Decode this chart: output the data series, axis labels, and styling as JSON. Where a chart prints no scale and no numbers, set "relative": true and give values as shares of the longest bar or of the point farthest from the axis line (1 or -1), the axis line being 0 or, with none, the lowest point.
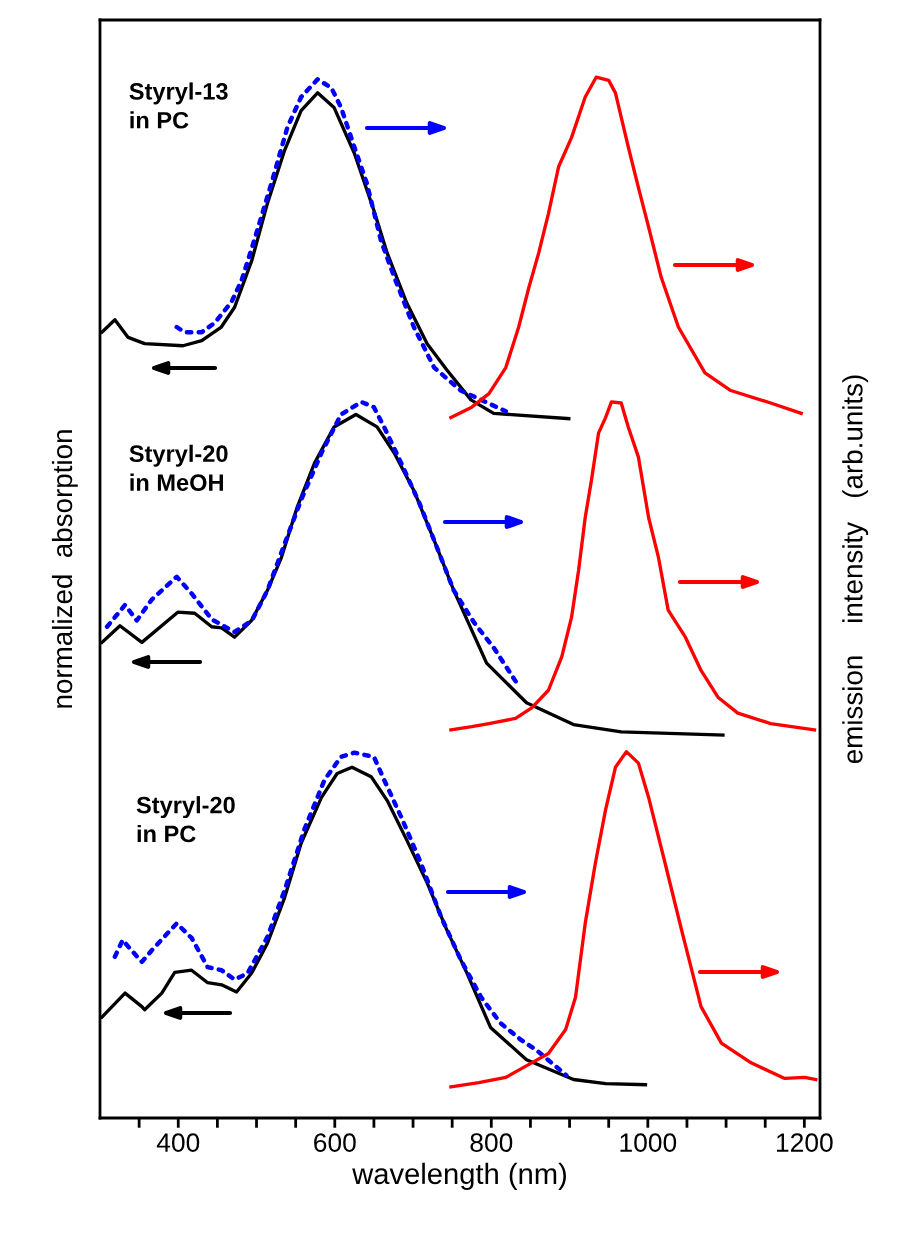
{
  "chart_data": {
    "type": "line",
    "relative": true,
    "xlabel": "wavelength (nm)",
    "ylabel": "normalized  absorption",
    "y2label": "emission    intensity   (arb.units)",
    "annotations": [
      "Styryl-13\nin PC",
      "Styryl-20\nin MeOH",
      "Styryl-20\nin PC"
    ],
    "xlim": [
      300,
      1220
    ],
    "xticks": [
      {
        "value": 350,
        "label": null
      },
      400,
      {
        "value": 450,
        "label": null
      },
      {
        "value": 500,
        "label": null
      },
      {
        "value": 550,
        "label": null
      },
      600,
      {
        "value": 650,
        "label": null
      },
      {
        "value": 700,
        "label": null
      },
      {
        "value": 750,
        "label": null
      },
      800,
      {
        "value": 850,
        "label": null
      },
      {
        "value": 900,
        "label": null
      },
      {
        "value": 950,
        "label": null
      },
      1000,
      {
        "value": 1050,
        "label": null
      },
      {
        "value": 1100,
        "label": null
      },
      {
        "value": 1150,
        "label": null
      },
      1200
    ],
    "grid": false,
    "legend": false,
    "marker": "none",
    "series": [
      {
        "color": "#000000",
        "line_style": "solid",
        "x": [
          302.5,
          319,
          336,
          357,
          406,
          430,
          455,
          472,
          494,
          514,
          536,
          557,
          578,
          599,
          625,
          650,
          667,
          692,
          718,
          743,
          774,
          803,
          899
        ],
        "values": [
          0.755,
          0.767,
          0.75,
          0.744,
          0.742,
          0.747,
          0.76,
          0.779,
          0.824,
          0.879,
          0.93,
          0.968,
          0.985,
          0.971,
          0.927,
          0.872,
          0.831,
          0.783,
          0.744,
          0.719,
          0.69,
          0.677,
          0.672
        ]
      },
      {
        "color": "#0000ff",
        "line_style": "dotted",
        "x": [
          398,
          408,
          430,
          446.5,
          468,
          481,
          497,
          519,
          539.5,
          557,
          578,
          595.5,
          608,
          625,
          641,
          659,
          676,
          701,
          727,
          761,
          818.5
        ],
        "values": [
          0.76,
          0.755,
          0.755,
          0.764,
          0.784,
          0.805,
          0.843,
          0.898,
          0.952,
          0.981,
          0.998,
          0.99,
          0.971,
          0.933,
          0.898,
          0.843,
          0.808,
          0.76,
          0.721,
          0.699,
          0.679
        ]
      },
      {
        "color": "#ff0000",
        "line_style": "solid",
        "x": [
          748.4,
          775,
          797,
          818.5,
          835,
          848,
          860.5,
          873,
          886,
          902.5,
          920,
          934,
          950,
          958.6,
          975,
          988,
          1001,
          1017,
          1039,
          1073,
          1106,
          1157,
          1196
        ],
        "values": [
          0.673,
          0.683,
          0.696,
          0.721,
          0.76,
          0.798,
          0.831,
          0.869,
          0.914,
          0.942,
          0.981,
          1.0,
          0.997,
          0.985,
          0.933,
          0.894,
          0.856,
          0.808,
          0.76,
          0.716,
          0.699,
          0.687,
          0.677
        ]
      },
      {
        "color": "#000000",
        "line_style": "solid",
        "x": [
          302.5,
          325.5,
          353.5,
          399.4,
          421,
          442.7,
          455.4,
          472,
          493.6,
          514,
          532,
          552,
          574,
          599,
          627,
          654,
          676,
          701,
          727,
          752,
          794,
          845,
          905,
          966,
          1096
        ],
        "values": [
          0.457,
          0.473,
          0.457,
          0.486,
          0.485,
          0.472,
          0.471,
          0.462,
          0.478,
          0.507,
          0.539,
          0.587,
          0.629,
          0.664,
          0.676,
          0.664,
          0.639,
          0.603,
          0.555,
          0.507,
          0.437,
          0.399,
          0.378,
          0.371,
          0.368
        ]
      },
      {
        "color": "#0000ff",
        "line_style": "dotted",
        "x": [
          309,
          332,
          347,
          366,
          398,
          417,
          443,
          472,
          494,
          514,
          536,
          557,
          583,
          608,
          634,
          650,
          663,
          685,
          708,
          727,
          752,
          778,
          803,
          832.5
        ],
        "values": [
          0.472,
          0.493,
          0.478,
          0.498,
          0.52,
          0.504,
          0.479,
          0.467,
          0.478,
          0.507,
          0.552,
          0.594,
          0.639,
          0.676,
          0.688,
          0.683,
          0.664,
          0.629,
          0.591,
          0.555,
          0.507,
          0.476,
          0.452,
          0.418
        ]
      },
      {
        "color": "#ff0000",
        "line_style": "solid",
        "x": [
          748.4,
          775,
          797,
          831,
          851.6,
          873,
          890,
          902.5,
          911.5,
          920,
          928,
          937,
          946,
          953.5,
          966,
          975,
          988,
          1001,
          1013.5,
          1026,
          1048,
          1068,
          1090,
          1115,
          1157,
          1213
        ],
        "values": [
          0.373,
          0.376,
          0.379,
          0.384,
          0.394,
          0.411,
          0.443,
          0.481,
          0.526,
          0.577,
          0.613,
          0.658,
          0.673,
          0.688,
          0.687,
          0.664,
          0.635,
          0.577,
          0.539,
          0.488,
          0.462,
          0.43,
          0.404,
          0.389,
          0.379,
          0.373
        ]
      },
      {
        "color": "#000000",
        "line_style": "solid",
        "x": [
          302.5,
          332,
          353.5,
          357,
          379,
          395.5,
          417,
          437.6,
          455.4,
          474.5,
          493.6,
          514,
          536,
          557,
          583,
          603,
          622,
          646.5,
          667,
          692,
          718,
          743,
          769,
          799,
          845,
          905,
          946,
          997
        ],
        "values": [
          0.097,
          0.12,
          0.107,
          0.104,
          0.12,
          0.14,
          0.142,
          0.13,
          0.128,
          0.121,
          0.139,
          0.168,
          0.212,
          0.264,
          0.308,
          0.331,
          0.337,
          0.328,
          0.305,
          0.267,
          0.226,
          0.181,
          0.139,
          0.087,
          0.056,
          0.037,
          0.033,
          0.032
        ]
      },
      {
        "color": "#0000ff",
        "line_style": "dotted",
        "x": [
          319,
          329,
          338,
          353.5,
          366,
          398,
          417,
          437.6,
          455.4,
          472,
          488.5,
          514,
          536,
          561,
          587,
          608,
          625,
          650,
          663,
          685,
          710,
          736,
          761,
          787,
          812,
          838,
          858,
          896
        ],
        "values": [
          0.155,
          0.171,
          0.163,
          0.15,
          0.161,
          0.187,
          0.173,
          0.145,
          0.142,
          0.133,
          0.139,
          0.174,
          0.219,
          0.277,
          0.325,
          0.347,
          0.351,
          0.347,
          0.325,
          0.289,
          0.245,
          0.193,
          0.152,
          0.116,
          0.091,
          0.075,
          0.065,
          0.041
        ]
      },
      {
        "color": "#ff0000",
        "line_style": "solid",
        "x": [
          748.4,
          784,
          818.5,
          851.6,
          873,
          895,
          907.6,
          920,
          933,
          946,
          958.6,
          972.6,
          988,
          1001,
          1022,
          1043,
          1068,
          1094,
          1132,
          1175,
          1200.6,
          1214.6
        ],
        "values": [
          0.03,
          0.034,
          0.039,
          0.053,
          0.062,
          0.085,
          0.116,
          0.187,
          0.245,
          0.296,
          0.337,
          0.352,
          0.341,
          0.308,
          0.245,
          0.181,
          0.107,
          0.072,
          0.053,
          0.038,
          0.039,
          0.037
        ]
      }
    ]
  }
}
